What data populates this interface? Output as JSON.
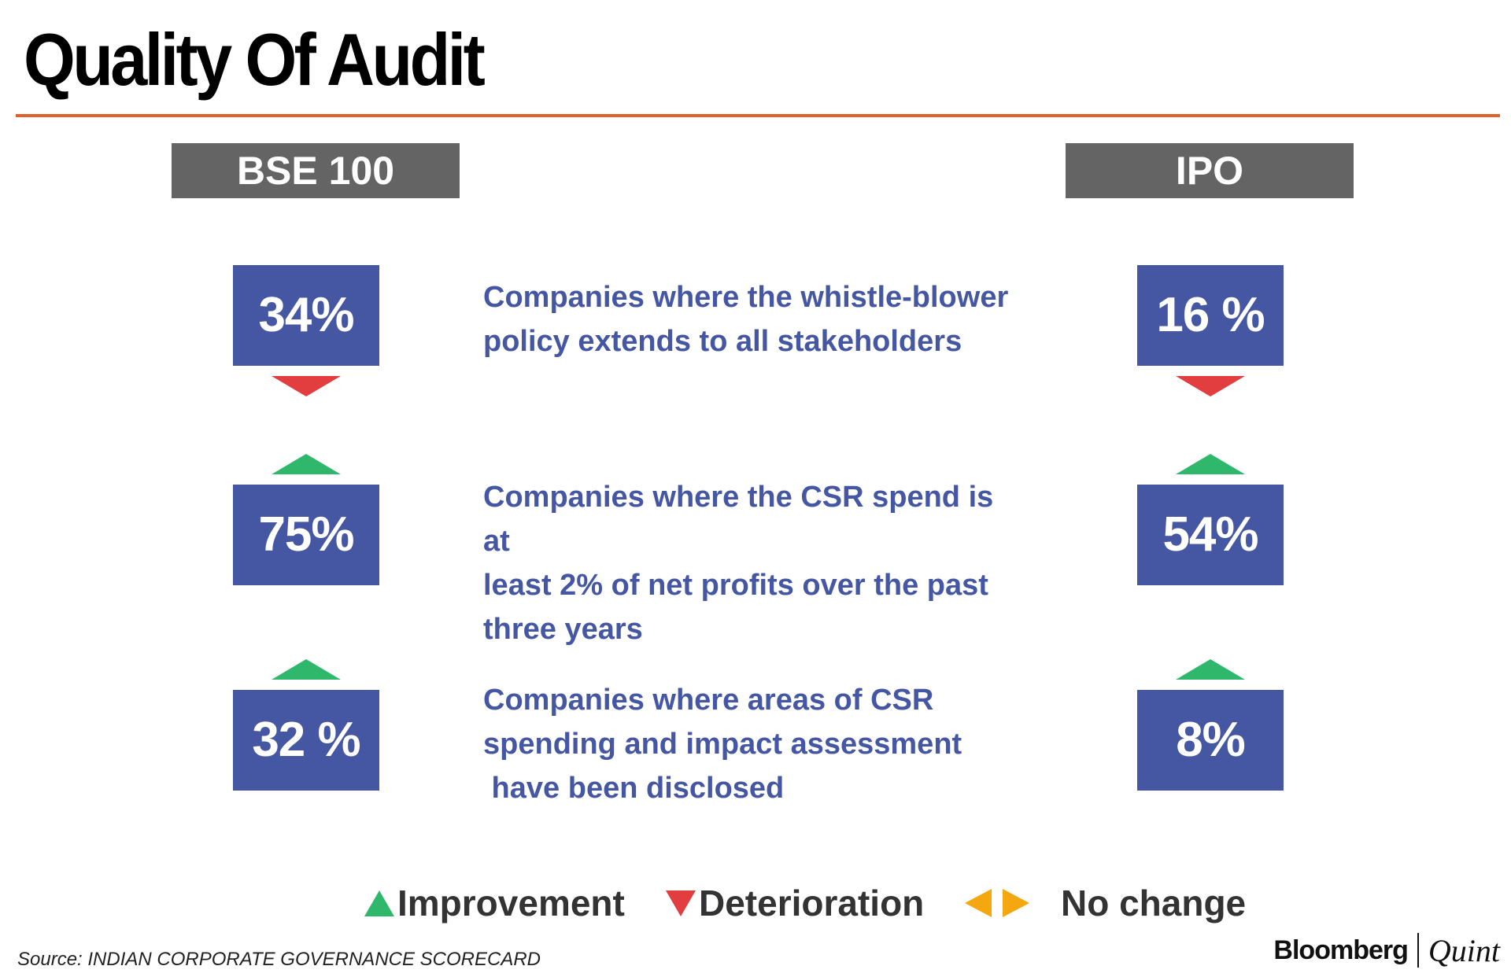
{
  "title": "Quality Of Audit",
  "columns": {
    "left": "BSE 100",
    "right": "IPO"
  },
  "rows": [
    {
      "description_lines": [
        "Companies where the whistle-blower",
        "policy extends to all stakeholders"
      ],
      "bse100": {
        "value": "34%",
        "trend": "deterioration"
      },
      "ipo": {
        "value": "16 %",
        "trend": "deterioration"
      }
    },
    {
      "description_lines": [
        "Companies where the CSR spend is at",
        "least 2% of net profits over the past",
        "three years"
      ],
      "bse100": {
        "value": "75%",
        "trend": "improvement"
      },
      "ipo": {
        "value": "54%",
        "trend": "improvement"
      }
    },
    {
      "description_lines": [
        "Companies where areas of CSR",
        "spending and impact assessment",
        " have been disclosed"
      ],
      "bse100": {
        "value": "32 %",
        "trend": "improvement"
      },
      "ipo": {
        "value": "8%",
        "trend": "improvement"
      }
    }
  ],
  "chart_data": {
    "type": "table",
    "title": "Quality Of Audit",
    "columns": [
      "BSE 100",
      "IPO"
    ],
    "categories": [
      "Companies where the whistle-blower policy extends to all stakeholders",
      "Companies where the CSR spend is at least 2% of net profits over the past three years",
      "Companies where areas of CSR spending and impact assessment have been disclosed"
    ],
    "series": [
      {
        "name": "BSE 100",
        "values": [
          34,
          75,
          32
        ],
        "trend": [
          "deterioration",
          "improvement",
          "improvement"
        ]
      },
      {
        "name": "IPO",
        "values": [
          16,
          54,
          8
        ],
        "trend": [
          "deterioration",
          "improvement",
          "improvement"
        ]
      }
    ],
    "unit": "%"
  },
  "legend": {
    "improvement": "Improvement",
    "deterioration": "Deterioration",
    "no_change": "No change"
  },
  "colors": {
    "value_box": "#4557a3",
    "header_box": "#646464",
    "rule": "#e1602a",
    "improvement": "#2fb86b",
    "deterioration": "#e23d3f",
    "no_change": "#f5a70f"
  },
  "source": "Source: INDIAN CORPORATE GOVERNANCE SCORECARD",
  "brand": {
    "left": "Bloomberg",
    "right": "Quint"
  }
}
